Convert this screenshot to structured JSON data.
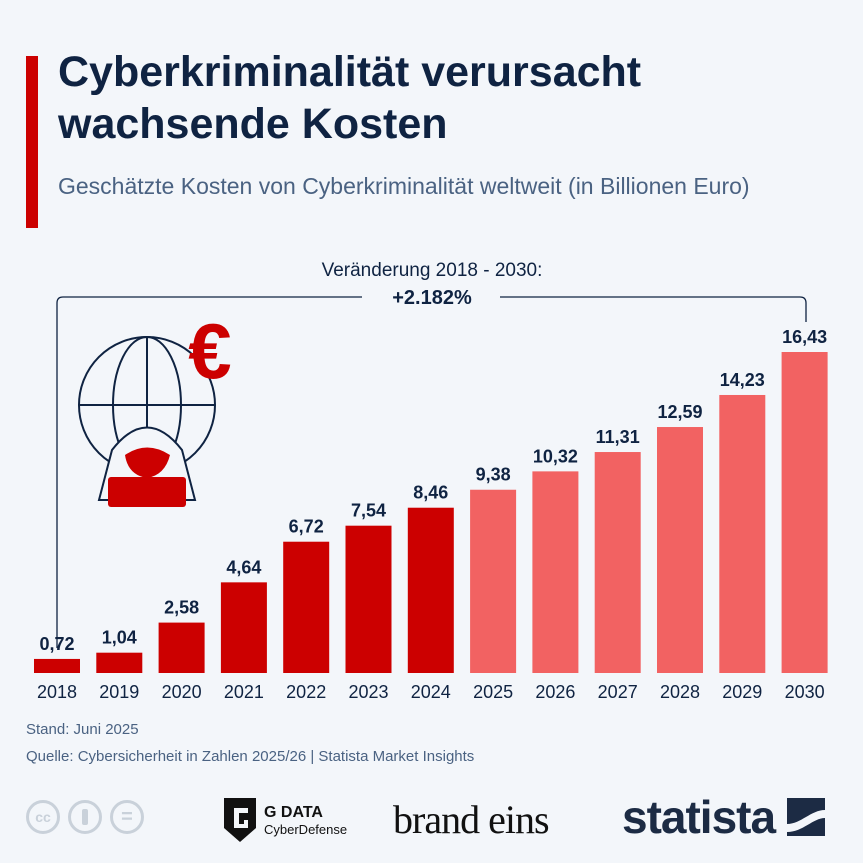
{
  "title": "Cyberkriminalität verursacht wachsende Kosten",
  "subtitle": "Geschätzte Kosten von Cyberkriminalität weltweit (in Billionen Euro)",
  "annotation": {
    "label": "Veränderung 2018 - 2030:",
    "value": "+2.182%"
  },
  "colors": {
    "actual": "#cc0000",
    "forecast": "#f26262",
    "title": "#0f2342",
    "background": "#f3f6fa"
  },
  "chart_data": {
    "type": "bar",
    "categories": [
      "2018",
      "2019",
      "2020",
      "2021",
      "2022",
      "2023",
      "2024",
      "2025",
      "2026",
      "2027",
      "2028",
      "2029",
      "2030"
    ],
    "values": [
      0.72,
      1.04,
      2.58,
      4.64,
      6.72,
      7.54,
      8.46,
      9.38,
      10.32,
      11.31,
      12.59,
      14.23,
      16.43
    ],
    "value_labels": [
      "0,72",
      "1,04",
      "2,58",
      "4,64",
      "6,72",
      "7,54",
      "8,46",
      "9,38",
      "10,32",
      "11,31",
      "12,59",
      "14,23",
      "16,43"
    ],
    "forecast_from": "2025",
    "ylim": [
      0,
      16.43
    ],
    "grid": false,
    "legend": "none"
  },
  "footer": {
    "stand": "Stand: Juni 2025",
    "source": "Quelle: Cybersicherheit in Zahlen 2025/26 | Statista Market Insights"
  },
  "logos": {
    "gdata": "G DATA",
    "gdata_sub": "CyberDefense",
    "brandeins": "brand eins",
    "statista": "statista",
    "cc": "cc"
  }
}
